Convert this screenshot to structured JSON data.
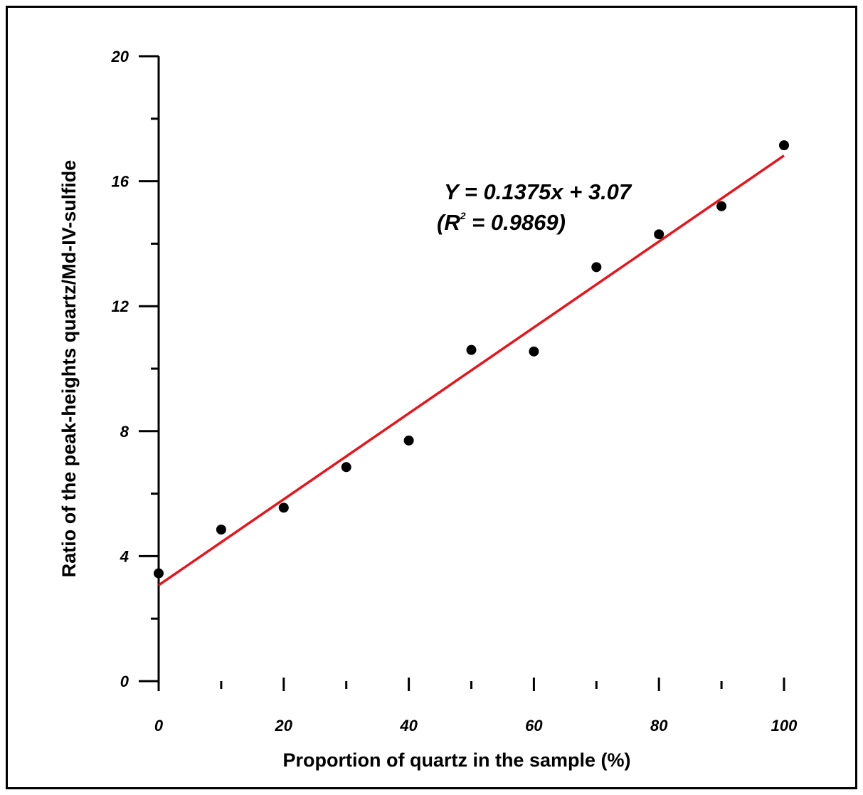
{
  "chart_data": {
    "type": "scatter",
    "xlabel": "Proportion of quartz in the sample (%)",
    "ylabel": "Ratio of the peak-heights quartz/Md-IV-sulfide",
    "xlim": [
      0,
      100
    ],
    "ylim": [
      0,
      20
    ],
    "x_ticks": [
      0,
      20,
      40,
      60,
      80,
      100
    ],
    "y_ticks": [
      0,
      4,
      8,
      12,
      16,
      20
    ],
    "x_tick_labels": [
      "0",
      "20",
      "40",
      "60",
      "80",
      "100"
    ],
    "y_tick_labels": [
      "0",
      "4",
      "8",
      "12",
      "16",
      "20"
    ],
    "x_minor_ticks": [
      10,
      30,
      50,
      70,
      90
    ],
    "y_minor_ticks": [
      2,
      6,
      10,
      14,
      18
    ],
    "grid": false,
    "series": [
      {
        "type": "scatter",
        "color": "#000000",
        "x": [
          0,
          10,
          20,
          30,
          40,
          50,
          60,
          70,
          80,
          90,
          100
        ],
        "y": [
          3.45,
          4.85,
          5.55,
          6.85,
          7.7,
          10.6,
          10.55,
          13.25,
          14.3,
          15.2,
          17.15
        ]
      },
      {
        "type": "line",
        "color": "#e8141c",
        "fit": {
          "slope": 0.1375,
          "intercept": 3.07
        },
        "x": [
          0,
          100
        ],
        "y": [
          3.07,
          16.82
        ]
      }
    ],
    "annotation": {
      "equation": "Y = 0.1375x + 3.07",
      "r2_prefix": "(R",
      "r2_sup": "2",
      "r2_suffix": " = 0.9869)"
    }
  }
}
